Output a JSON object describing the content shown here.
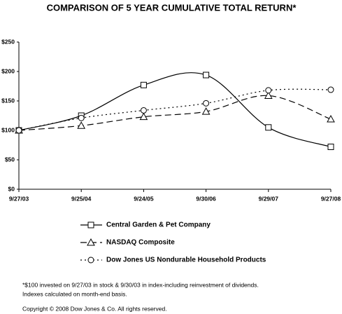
{
  "chart_data": {
    "type": "line",
    "title": "COMPARISON OF 5 YEAR CUMULATIVE TOTAL RETURN*",
    "categories": [
      "9/27/03",
      "9/25/04",
      "9/24/05",
      "9/30/06",
      "9/29/07",
      "9/27/08"
    ],
    "series": [
      {
        "name": "Central Garden & Pet Company",
        "color": "#000000",
        "line_style": "solid",
        "marker": "square",
        "values": [
          100,
          125,
          177,
          194,
          105,
          72
        ]
      },
      {
        "name": "NASDAQ Composite",
        "color": "#000000",
        "line_style": "dashed",
        "marker": "triangle",
        "values": [
          100,
          108,
          123,
          132,
          159,
          119
        ]
      },
      {
        "name": "Dow Jones US Nondurable Household Products",
        "color": "#000000",
        "line_style": "dotted",
        "marker": "circle",
        "values": [
          100,
          121,
          134,
          146,
          168,
          169
        ]
      }
    ],
    "ylim": [
      0,
      250
    ],
    "yticks": [
      {
        "value": 0,
        "label": "$0"
      },
      {
        "value": 50,
        "label": "$50"
      },
      {
        "value": 100,
        "label": "$100"
      },
      {
        "value": 150,
        "label": "$150"
      },
      {
        "value": 200,
        "label": "$200"
      },
      {
        "value": 250,
        "label": "$250"
      }
    ],
    "grid": false,
    "annotations": [
      "*$100 invested on 9/27/03 in stock & 9/30/03 in index-including reinvestment of dividends.",
      "Indexes calculated on month-end basis.",
      "Copyright © 2008 Dow Jones & Co. All rights reserved."
    ]
  }
}
